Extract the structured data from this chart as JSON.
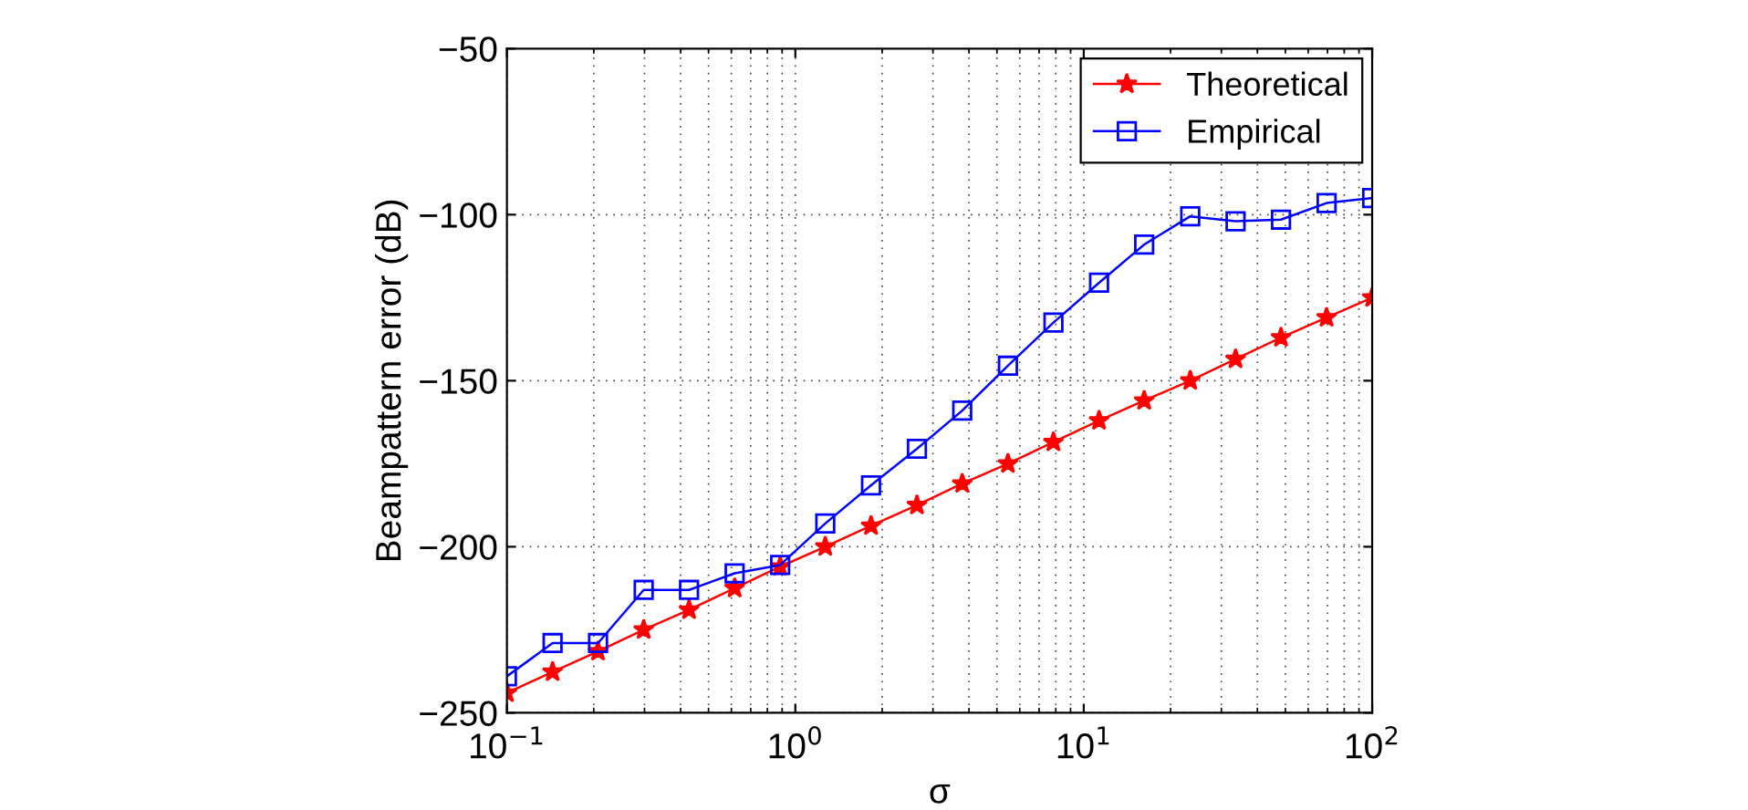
{
  "chart_data": {
    "type": "line",
    "xlabel": "σ",
    "ylabel": "Beampattern error (dB)",
    "log": "x",
    "grid": true,
    "legend": "top right",
    "line_style": "solid",
    "x": [
      0.1,
      0.144,
      0.207,
      0.298,
      0.428,
      0.616,
      0.886,
      1.27,
      1.83,
      2.64,
      3.79,
      5.46,
      7.85,
      11.3,
      16.2,
      23.4,
      33.6,
      48.3,
      69.5,
      100
    ],
    "xlim": [
      0.1,
      100
    ],
    "xticks": [
      {
        "value": 0.1,
        "label": "10$^{−1}$"
      },
      {
        "value": 1,
        "label": "10$^{0}$"
      },
      {
        "value": 10,
        "label": "10$^{1}$"
      },
      {
        "value": 100,
        "label": "10$^{2}$"
      }
    ],
    "ylim": [
      -250,
      -50
    ],
    "yticks": [
      {
        "value": -250,
        "label": "−250"
      },
      {
        "value": -200,
        "label": "−200"
      },
      {
        "value": -150,
        "label": "−150"
      },
      {
        "value": -100,
        "label": "−100"
      },
      {
        "value": -50,
        "label": "−50"
      }
    ],
    "series": [
      {
        "name": "Theoretical",
        "color": "#ff0000",
        "marker": "star",
        "values": [
          -244,
          -237.7,
          -231.5,
          -225,
          -219,
          -212.5,
          -206,
          -200,
          -193.7,
          -187.5,
          -181,
          -175,
          -168.5,
          -162,
          -156,
          -150,
          -143.5,
          -137,
          -131,
          -125
        ]
      },
      {
        "name": "Empirical",
        "color": "#0000ff",
        "marker": "square",
        "values": [
          -239,
          -229,
          -229,
          -213,
          -213,
          -208,
          -205.5,
          -193,
          -181.5,
          -170.5,
          -159,
          -145.5,
          -132.5,
          -120.5,
          -109,
          -100.5,
          -102,
          -101.5,
          -96.5,
          -95
        ]
      }
    ]
  }
}
